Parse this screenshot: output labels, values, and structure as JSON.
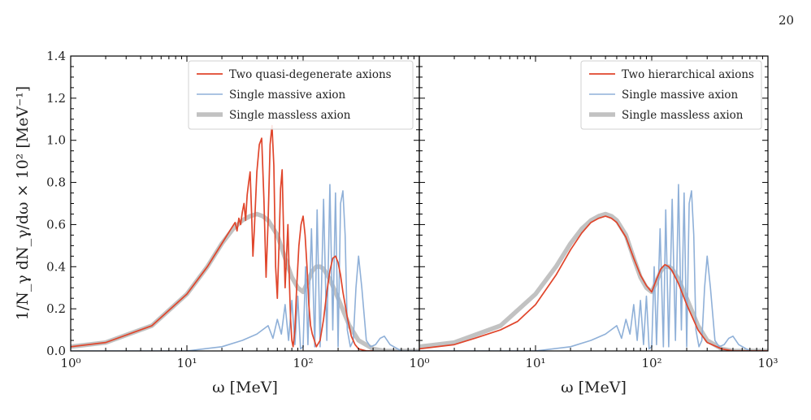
{
  "page_number": "20",
  "colors": {
    "red": "#e0452b",
    "blue": "#8fb0d8",
    "gray": "#c2c2c2",
    "axis": "#000000"
  },
  "ylabel": "1/N_γ dN_γ/dω × 10² [MeV⁻¹]",
  "y_ticks": [
    "0.0",
    "0.2",
    "0.4",
    "0.6",
    "0.8",
    "1.0",
    "1.2",
    "1.4"
  ],
  "chart_data": [
    {
      "type": "line",
      "xlabel": "ω [MeV]",
      "x_scale": "log",
      "xlim": [
        1,
        1000
      ],
      "ylim": [
        0,
        1.4
      ],
      "x_tick_labels": [
        "10⁰",
        "10¹",
        "10²"
      ],
      "legend_position": "top-right",
      "series": [
        {
          "name": "Two quasi-degenerate axions",
          "color": "#e0452b",
          "x": [
            1,
            2,
            5,
            10,
            15,
            20,
            24,
            26,
            27,
            28,
            29,
            30,
            31,
            32,
            33,
            34,
            35,
            36,
            37,
            38,
            40,
            42,
            44,
            46,
            48,
            50,
            52,
            54,
            56,
            58,
            60,
            62,
            64,
            66,
            68,
            70,
            72,
            74,
            76,
            78,
            80,
            82,
            85,
            88,
            92,
            96,
            100,
            104,
            108,
            112,
            116,
            120,
            125,
            130,
            140,
            150,
            160,
            170,
            180,
            190,
            200,
            210,
            220,
            240,
            260,
            280,
            300,
            350,
            400
          ],
          "y": [
            0.02,
            0.04,
            0.12,
            0.27,
            0.4,
            0.51,
            0.58,
            0.61,
            0.57,
            0.63,
            0.6,
            0.66,
            0.7,
            0.62,
            0.74,
            0.8,
            0.85,
            0.66,
            0.45,
            0.57,
            0.85,
            0.98,
            1.01,
            0.72,
            0.35,
            0.62,
            0.98,
            1.07,
            0.88,
            0.4,
            0.25,
            0.5,
            0.77,
            0.86,
            0.55,
            0.3,
            0.45,
            0.6,
            0.35,
            0.15,
            0.05,
            0.02,
            0.1,
            0.3,
            0.5,
            0.6,
            0.64,
            0.55,
            0.4,
            0.22,
            0.12,
            0.08,
            0.05,
            0.02,
            0.05,
            0.15,
            0.28,
            0.38,
            0.44,
            0.45,
            0.42,
            0.36,
            0.28,
            0.16,
            0.07,
            0.03,
            0.01,
            0.0,
            0.0
          ]
        },
        {
          "name": "Single massive axion",
          "color": "#8fb0d8",
          "x": [
            1,
            5,
            10,
            20,
            30,
            40,
            50,
            55,
            60,
            65,
            70,
            75,
            80,
            85,
            90,
            95,
            100,
            105,
            110,
            118,
            126,
            132,
            140,
            150,
            160,
            170,
            180,
            190,
            200,
            210,
            220,
            230,
            240,
            255,
            270,
            285,
            300,
            320,
            350,
            380,
            420,
            460,
            500,
            560,
            700,
            1000
          ],
          "y": [
            0.0,
            0.0,
            0.0,
            0.02,
            0.05,
            0.08,
            0.12,
            0.06,
            0.15,
            0.08,
            0.22,
            0.05,
            0.24,
            0.03,
            0.26,
            0.01,
            0.02,
            0.4,
            0.03,
            0.58,
            0.02,
            0.67,
            0.02,
            0.72,
            0.05,
            0.79,
            0.1,
            0.75,
            0.02,
            0.7,
            0.76,
            0.55,
            0.1,
            0.02,
            0.05,
            0.3,
            0.45,
            0.3,
            0.05,
            0.02,
            0.03,
            0.06,
            0.07,
            0.03,
            0.0,
            0.0
          ]
        },
        {
          "name": "Single massless axion",
          "color": "#c2c2c2",
          "x": [
            1,
            2,
            5,
            10,
            15,
            20,
            25,
            30,
            35,
            40,
            45,
            50,
            60,
            70,
            80,
            90,
            100,
            110,
            120,
            130,
            140,
            150,
            170,
            200,
            250,
            300,
            400,
            500,
            1000
          ],
          "y": [
            0.02,
            0.04,
            0.12,
            0.27,
            0.4,
            0.51,
            0.58,
            0.62,
            0.64,
            0.65,
            0.64,
            0.62,
            0.55,
            0.44,
            0.35,
            0.3,
            0.28,
            0.33,
            0.38,
            0.4,
            0.4,
            0.39,
            0.34,
            0.25,
            0.12,
            0.05,
            0.01,
            0.0,
            0.0
          ]
        }
      ]
    },
    {
      "type": "line",
      "xlabel": "ω [MeV]",
      "x_scale": "log",
      "xlim": [
        1,
        1000
      ],
      "ylim": [
        0,
        1.4
      ],
      "x_tick_labels": [
        "10⁰",
        "10¹",
        "10²",
        "10³"
      ],
      "legend_position": "top-right",
      "series": [
        {
          "name": "Two hierarchical axions",
          "color": "#e0452b",
          "x": [
            1,
            2,
            3,
            5,
            7,
            10,
            15,
            20,
            25,
            30,
            35,
            40,
            45,
            50,
            60,
            70,
            80,
            90,
            100,
            110,
            120,
            130,
            140,
            150,
            170,
            200,
            250,
            300,
            400,
            500,
            1000
          ],
          "y": [
            0.01,
            0.03,
            0.06,
            0.1,
            0.14,
            0.22,
            0.36,
            0.48,
            0.56,
            0.61,
            0.63,
            0.64,
            0.63,
            0.61,
            0.54,
            0.44,
            0.36,
            0.31,
            0.28,
            0.34,
            0.39,
            0.41,
            0.4,
            0.38,
            0.32,
            0.22,
            0.1,
            0.04,
            0.01,
            0.0,
            0.0
          ]
        },
        {
          "name": "Single massive axion",
          "color": "#8fb0d8",
          "x": [
            1,
            5,
            10,
            20,
            30,
            40,
            50,
            55,
            60,
            65,
            70,
            75,
            80,
            85,
            90,
            95,
            100,
            105,
            110,
            118,
            126,
            132,
            140,
            150,
            160,
            170,
            180,
            190,
            200,
            210,
            220,
            230,
            240,
            255,
            270,
            285,
            300,
            320,
            350,
            380,
            420,
            460,
            500,
            560,
            700,
            1000
          ],
          "y": [
            0.0,
            0.0,
            0.0,
            0.02,
            0.05,
            0.08,
            0.12,
            0.06,
            0.15,
            0.08,
            0.22,
            0.05,
            0.24,
            0.03,
            0.26,
            0.01,
            0.02,
            0.4,
            0.03,
            0.58,
            0.02,
            0.67,
            0.02,
            0.72,
            0.05,
            0.79,
            0.1,
            0.75,
            0.02,
            0.7,
            0.76,
            0.55,
            0.1,
            0.02,
            0.05,
            0.3,
            0.45,
            0.3,
            0.05,
            0.02,
            0.03,
            0.06,
            0.07,
            0.03,
            0.0,
            0.0
          ]
        },
        {
          "name": "Single massless axion",
          "color": "#c2c2c2",
          "x": [
            1,
            2,
            5,
            10,
            15,
            20,
            25,
            30,
            35,
            40,
            45,
            50,
            60,
            70,
            80,
            90,
            100,
            110,
            120,
            130,
            140,
            150,
            170,
            200,
            250,
            300,
            400,
            500,
            1000
          ],
          "y": [
            0.02,
            0.04,
            0.12,
            0.27,
            0.4,
            0.51,
            0.58,
            0.62,
            0.64,
            0.65,
            0.64,
            0.62,
            0.55,
            0.44,
            0.35,
            0.3,
            0.28,
            0.33,
            0.38,
            0.4,
            0.4,
            0.39,
            0.34,
            0.25,
            0.12,
            0.05,
            0.01,
            0.0,
            0.0
          ]
        }
      ]
    }
  ]
}
